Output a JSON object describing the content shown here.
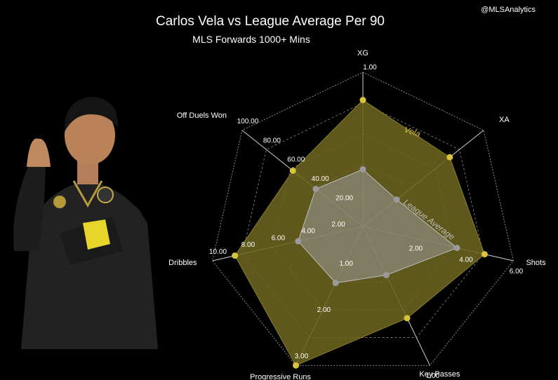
{
  "header": {
    "title": "Carlos Vela vs League Average Per 90",
    "subtitle": "MLS Forwards 1000+ Mins",
    "watermark": "@MLSAnalytics"
  },
  "colors": {
    "background": "#000000",
    "vela": "#d8c43a",
    "vela_fill": "#6b6420",
    "league": "#9a9a9a",
    "grid": "#8a8a8a"
  },
  "chart_data": {
    "type": "radar",
    "axes": [
      {
        "name": "XG",
        "max": 1.0,
        "ticks": [
          "1.00"
        ]
      },
      {
        "name": "XA",
        "max": 1.0,
        "ticks": []
      },
      {
        "name": "Shots",
        "max": 6.0,
        "ticks": [
          "2.00",
          "4.00",
          "6.00"
        ]
      },
      {
        "name": "Key Passes",
        "max": 1.0,
        "ticks": [
          "1.00"
        ]
      },
      {
        "name": "Progressive Runs",
        "max": 3.0,
        "ticks": [
          "1.00",
          "2.00",
          "3.00"
        ]
      },
      {
        "name": "Dribbles",
        "max": 10.0,
        "ticks": [
          "2.00",
          "4.00",
          "6.00",
          "8.00",
          "10.00"
        ]
      },
      {
        "name": "Off Duels Won",
        "max": 100.0,
        "ticks": [
          "20.00",
          "40.00",
          "60.00",
          "80.00",
          "100.00"
        ]
      }
    ],
    "series": [
      {
        "name": "Vela",
        "values": [
          0.82,
          0.72,
          4.85,
          0.66,
          3.0,
          8.5,
          58.0
        ]
      },
      {
        "name": "League Average",
        "values": [
          0.37,
          0.28,
          3.75,
          0.35,
          1.22,
          4.3,
          39.0
        ]
      }
    ],
    "grid_levels": 5
  }
}
